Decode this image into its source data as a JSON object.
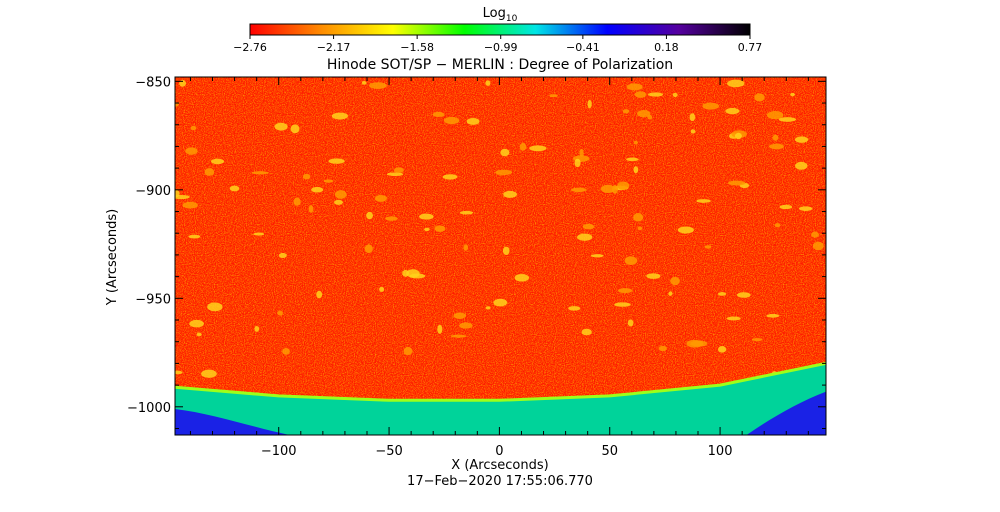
{
  "chart_data": {
    "type": "heatmap",
    "title": "Hinode SOT/SP − MERLIN : Degree of Polarization",
    "xlabel": "X (Arcseconds)",
    "ylabel": "Y (Arcseconds)",
    "footer": "17−Feb−2020 17:55:06.770",
    "colorbar": {
      "label_base": "Log",
      "label_sub": "10",
      "range": [
        -2.76,
        0.77
      ],
      "tick_values": [
        -2.76,
        -2.17,
        -1.58,
        -0.99,
        -0.41,
        0.18,
        0.77
      ],
      "tick_labels": [
        "−2.76",
        "−2.17",
        "−1.58",
        "−0.99",
        "−0.41",
        "0.18",
        "0.77"
      ],
      "colors": [
        "#ff0000",
        "#ff8c00",
        "#ffff00",
        "#00ff00",
        "#00e5e5",
        "#0000ff",
        "#55009f",
        "#000000"
      ]
    },
    "xlim": [
      -147,
      148
    ],
    "ylim": [
      -1013,
      -848
    ],
    "x_ticks": [
      -100,
      -50,
      0,
      50,
      100
    ],
    "x_tick_labels": [
      "−100",
      "−50",
      "0",
      "50",
      "100"
    ],
    "y_ticks": [
      -850,
      -900,
      -950,
      -1000
    ],
    "y_tick_labels": [
      "−850",
      "−900",
      "−950",
      "−1000"
    ],
    "limb_curve": {
      "x": [
        -147,
        -100,
        -50,
        0,
        50,
        100,
        148
      ],
      "y": [
        -991,
        -995,
        -997,
        -997,
        -995,
        -990,
        -980
      ]
    },
    "disk_value_log10": -2.72,
    "off_limb_value_log10": [
      -1.2,
      -0.3
    ]
  }
}
